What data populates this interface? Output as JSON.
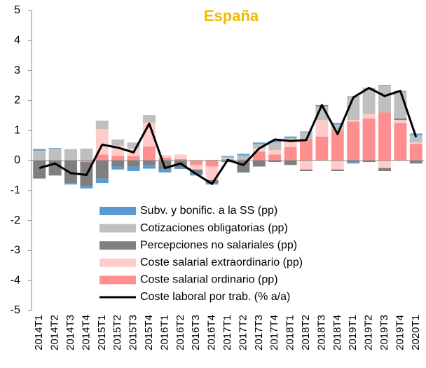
{
  "chart_data": {
    "type": "bar",
    "stacked": true,
    "title": "España",
    "title_color": "#f5b800",
    "categories": [
      "2014T1",
      "2014T2",
      "2014T3",
      "2014T4",
      "2015T1",
      "2015T2",
      "2015T3",
      "2015T4",
      "2016T1",
      "2016T2",
      "2016T3",
      "2016T4",
      "2017T1",
      "2017T2",
      "2017T3",
      "2017T4",
      "2018T1",
      "2018T2",
      "2018T3",
      "2018T4",
      "2019T1",
      "2019T2",
      "2019T3",
      "2019T4",
      "2020T1"
    ],
    "series": [
      {
        "name": "Subv. y bonific. a la SS (pp)",
        "color": "#5b9bd5",
        "values": [
          0.05,
          0.02,
          -0.05,
          -0.08,
          -0.15,
          -0.1,
          -0.15,
          -0.12,
          -0.1,
          -0.03,
          -0.05,
          -0.05,
          0.03,
          0.05,
          0.05,
          0.05,
          0.05,
          0.02,
          0.05,
          0.05,
          -0.05,
          0.02,
          0.02,
          0.02,
          0.05
        ]
      },
      {
        "name": "Cotizaciones obligatorias (pp)",
        "color": "#bfbfbf",
        "values": [
          0.33,
          0.4,
          0.38,
          0.4,
          0.28,
          0.2,
          0.2,
          0.25,
          0,
          0,
          0,
          0.02,
          0.05,
          0.12,
          0.15,
          0.25,
          0.1,
          0.25,
          0.45,
          0.2,
          0.8,
          0.85,
          0.9,
          0.9,
          0.25
        ]
      },
      {
        "name": "Percepciones no salariales (pp)",
        "color": "#7f7f7f",
        "values": [
          -0.6,
          -0.5,
          -0.75,
          -0.8,
          -0.6,
          -0.2,
          -0.2,
          -0.15,
          -0.3,
          -0.25,
          -0.15,
          -0.1,
          -0.05,
          -0.4,
          -0.2,
          -0.05,
          -0.15,
          -0.05,
          0,
          -0.05,
          -0.05,
          -0.05,
          -0.1,
          0.05,
          -0.1
        ]
      },
      {
        "name": "Coste salarial extraordinario (pp)",
        "color": "#ffcccc",
        "values": [
          0,
          0,
          0,
          0,
          0.85,
          0.35,
          0.25,
          0.8,
          0.08,
          0.15,
          -0.15,
          -0.45,
          0.02,
          0,
          0.1,
          0.15,
          0.2,
          -0.3,
          0.55,
          -0.3,
          0.05,
          0.15,
          -0.25,
          0.1,
          0.05
        ]
      },
      {
        "name": "Coste salarial ordinario (pp)",
        "color": "#ff8f8f",
        "values": [
          0,
          0,
          0,
          -0.05,
          0.2,
          0.15,
          0.15,
          0.47,
          0.1,
          0.05,
          -0.15,
          -0.2,
          0.05,
          0.05,
          0.3,
          0.2,
          0.45,
          0.7,
          0.8,
          1.0,
          1.3,
          1.4,
          1.6,
          1.25,
          0.55
        ]
      }
    ],
    "line": {
      "name": "Coste laboral por trab. (% a/a)",
      "color": "#000000",
      "values": [
        -0.25,
        -0.1,
        -0.42,
        -0.48,
        0.53,
        0.43,
        0.27,
        1.23,
        -0.25,
        -0.1,
        -0.45,
        -0.78,
        0.02,
        -0.15,
        0.4,
        0.7,
        0.65,
        0.68,
        1.85,
        0.88,
        2.1,
        2.42,
        2.15,
        2.32,
        0.78
      ]
    },
    "ylim": [
      -5,
      5
    ],
    "yticks": [
      -5,
      -4,
      -3,
      -2,
      -1,
      0,
      1,
      2,
      3,
      4,
      5
    ]
  }
}
